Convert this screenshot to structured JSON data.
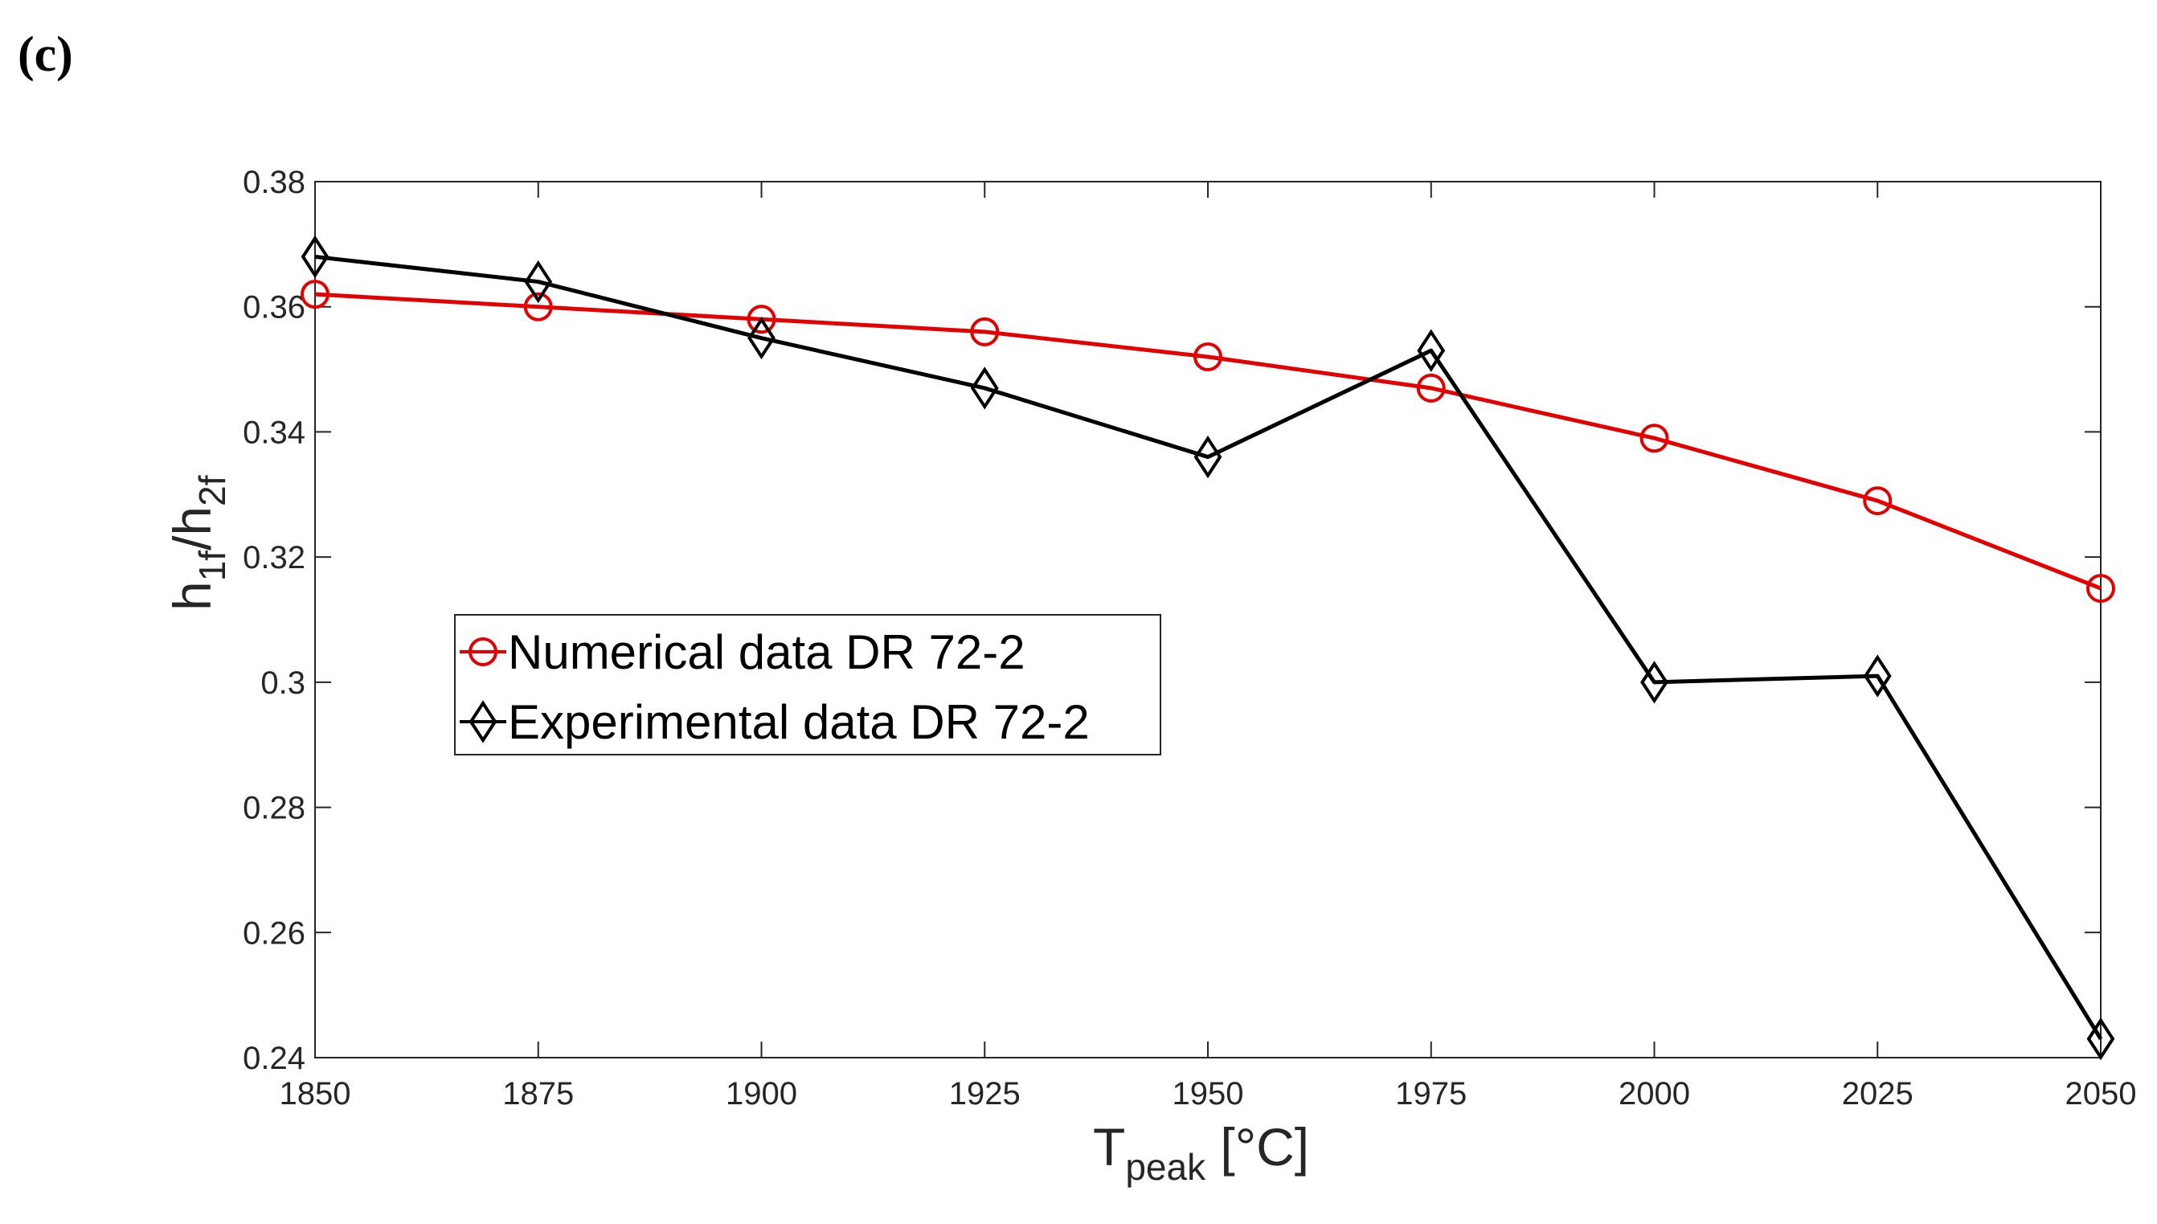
{
  "panel_label": "(c)",
  "colors": {
    "numerical": "#e40000",
    "experimental": "#000000",
    "axis": "#262626"
  },
  "chart_data": {
    "type": "line",
    "title": "",
    "xlabel": {
      "main": "T",
      "subscript": "peak",
      "unit": " [°C]"
    },
    "ylabel": {
      "h1": "h",
      "sub1": "1f",
      "slash": "/h",
      "sub2": "2f"
    },
    "xlim": [
      1850,
      2050
    ],
    "ylim": [
      0.24,
      0.38
    ],
    "x_ticks": [
      1850,
      1875,
      1900,
      1925,
      1950,
      1975,
      2000,
      2025,
      2050
    ],
    "x_tick_labels": [
      "1850",
      "1875",
      "1900",
      "1925",
      "1950",
      "1975",
      "2000",
      "2025",
      "2050"
    ],
    "y_ticks": [
      0.24,
      0.26,
      0.28,
      0.3,
      0.32,
      0.34,
      0.36,
      0.38
    ],
    "y_tick_labels": [
      "0.24",
      "0.26",
      "0.28",
      "0.3",
      "0.32",
      "0.34",
      "0.36",
      "0.38"
    ],
    "grid": false,
    "legend_position": "middle-left",
    "series": [
      {
        "name": "Numerical data DR 72-2",
        "marker": "circle",
        "color_key": "numerical",
        "x": [
          1850,
          1875,
          1900,
          1925,
          1950,
          1975,
          2000,
          2025,
          2050
        ],
        "y": [
          0.362,
          0.36,
          0.358,
          0.356,
          0.352,
          0.347,
          0.339,
          0.329,
          0.315
        ]
      },
      {
        "name": "Experimental data DR 72-2",
        "marker": "diamond",
        "color_key": "experimental",
        "x": [
          1850,
          1875,
          1900,
          1925,
          1950,
          1975,
          2000,
          2025,
          2050
        ],
        "y": [
          0.368,
          0.364,
          0.355,
          0.347,
          0.336,
          0.353,
          0.3,
          0.301,
          0.243
        ]
      }
    ]
  }
}
